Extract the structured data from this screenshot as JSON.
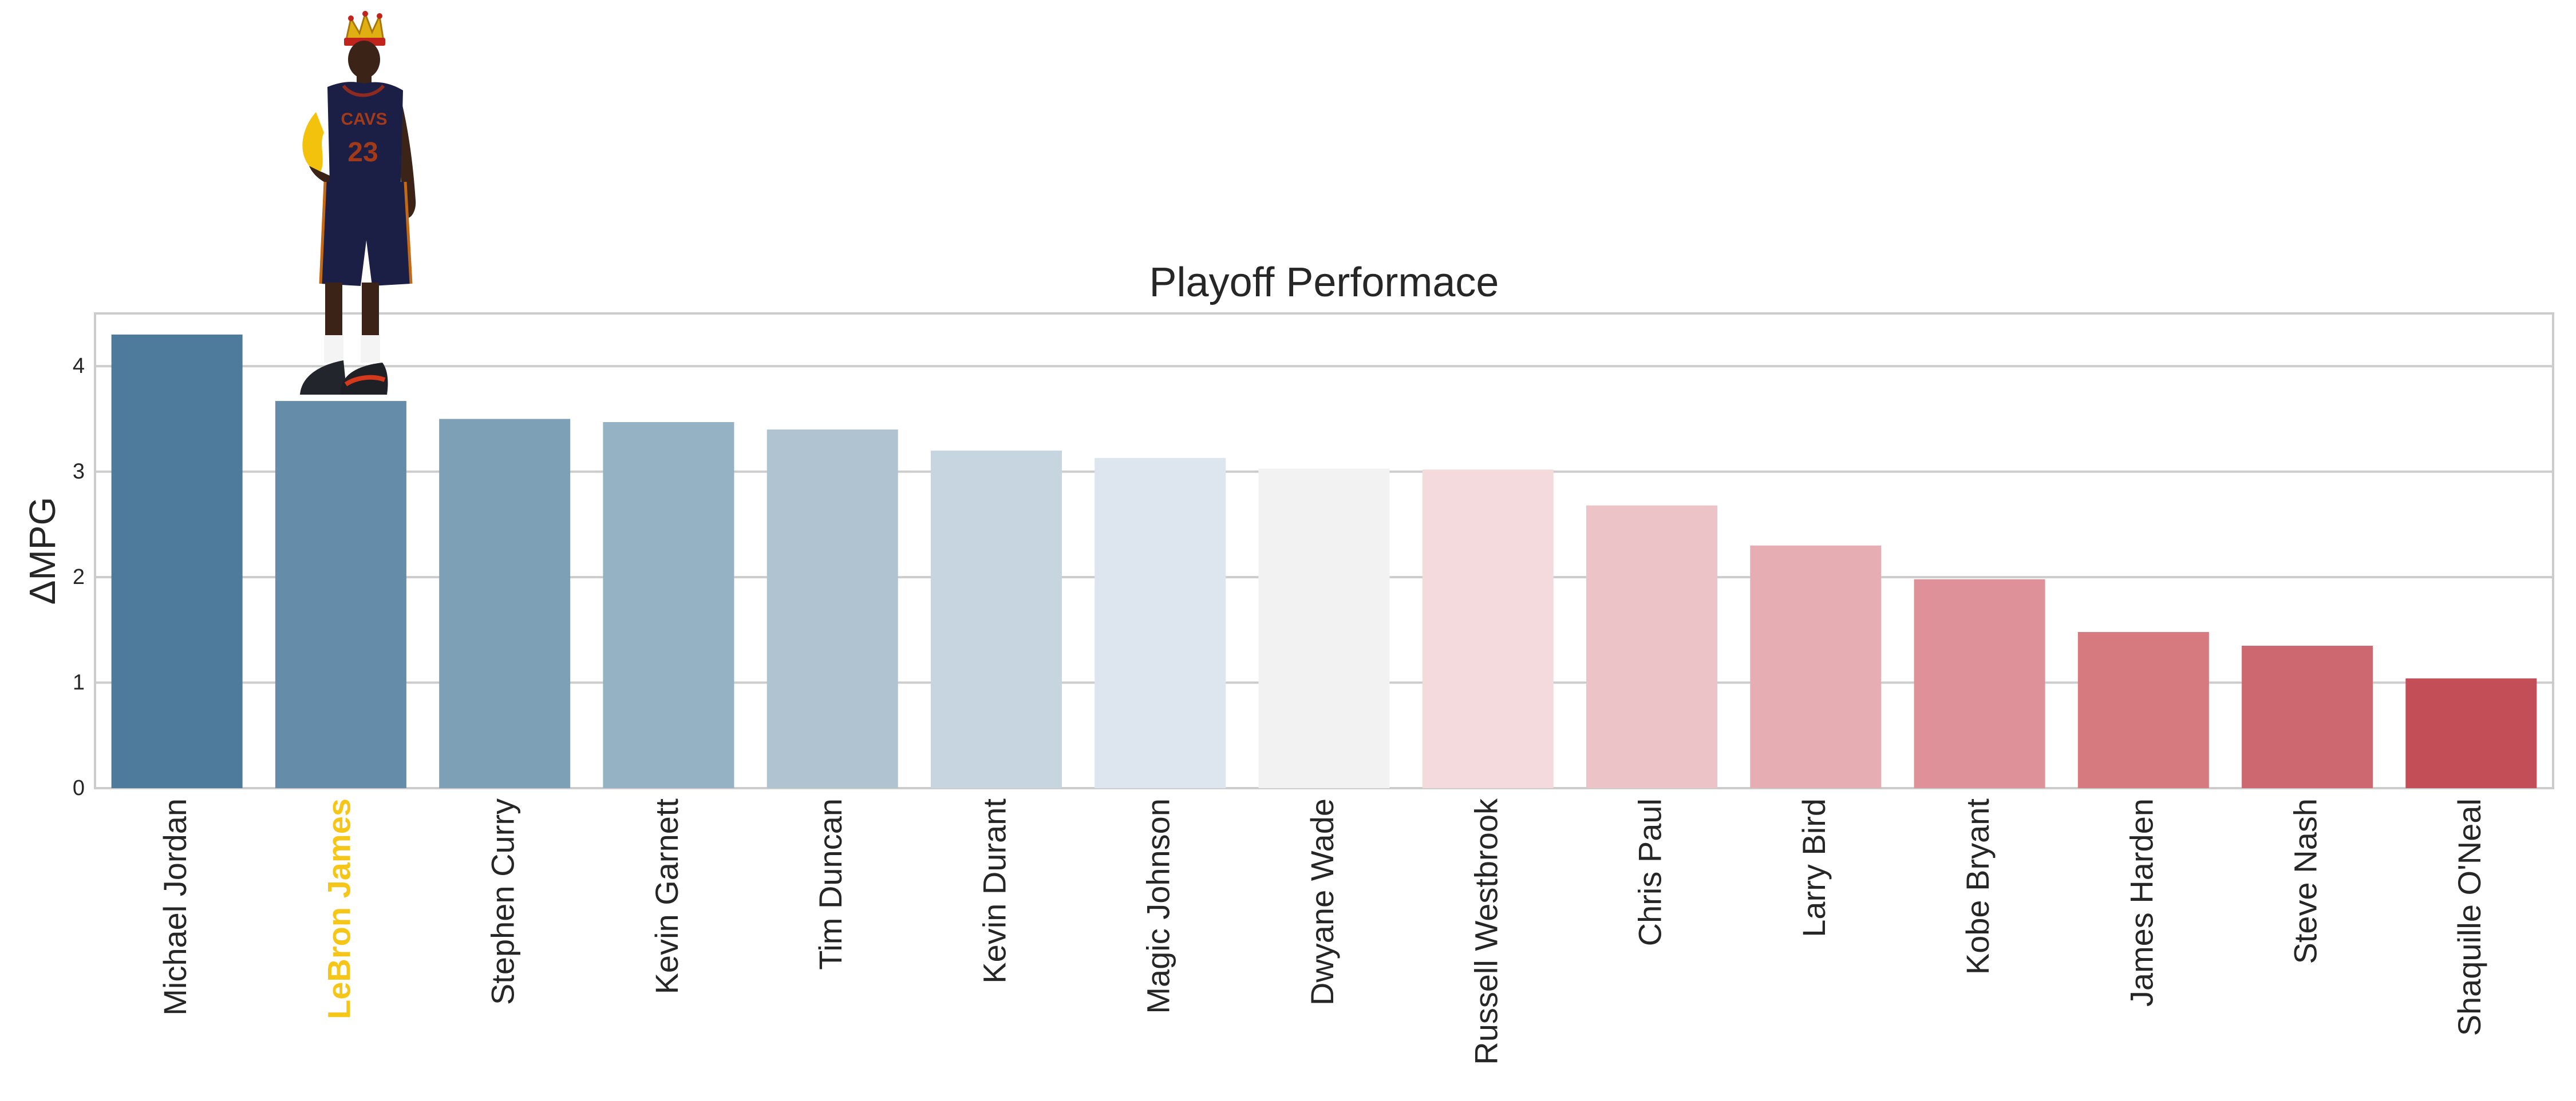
{
  "chart_data": {
    "type": "bar",
    "title": "Playoff Performace",
    "xlabel": "",
    "ylabel": "ΔMPG",
    "ylim": [
      0,
      4.5
    ],
    "yticks": [
      0,
      1,
      2,
      3,
      4
    ],
    "grid": true,
    "legend": "none",
    "highlight_category": "LeBron James",
    "highlight_color": "#f5c518",
    "categories": [
      "Michael Jordan",
      "LeBron James",
      "Stephen Curry",
      "Kevin Garnett",
      "Tim Duncan",
      "Kevin Durant",
      "Magic Johnson",
      "Dwyane Wade",
      "Russell Westbrook",
      "Chris Paul",
      "Larry Bird",
      "Kobe Bryant",
      "James Harden",
      "Steve Nash",
      "Shaquille O'Neal"
    ],
    "values": [
      4.3,
      3.67,
      3.5,
      3.47,
      3.4,
      3.2,
      3.13,
      3.03,
      3.02,
      2.68,
      2.3,
      1.98,
      1.48,
      1.35,
      1.04
    ],
    "colors": [
      "#4e7a9c",
      "#658da9",
      "#7ea0b6",
      "#95b1c4",
      "#afc3d1",
      "#c6d5df",
      "#dde6ee",
      "#f2f2f2",
      "#f4dadd",
      "#ecc3c7",
      "#e6aeb2",
      "#de9198",
      "#d67a7f",
      "#cd6870",
      "#c44e57"
    ]
  },
  "decoration": {
    "image": "player-in-crown-on-bar",
    "player_jersey_lettering": "CAVS",
    "player_jersey_number": "23"
  }
}
